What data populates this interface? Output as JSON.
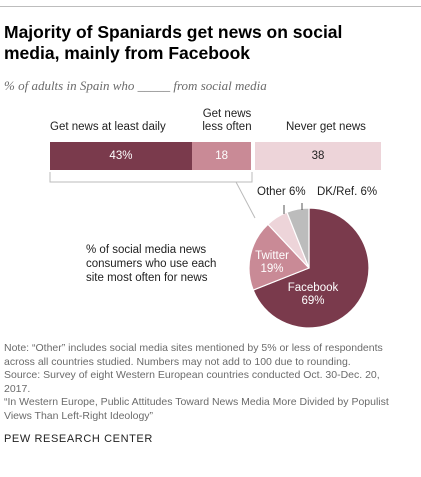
{
  "title_line1": "Majority of Spaniards get news on social",
  "title_line2": "media, mainly from Facebook",
  "subtitle": "% of adults in Spain who _____ from social media",
  "colors": {
    "daily": "#7a3a4c",
    "less_often": "#c98a96",
    "never": "#edd4d9",
    "facebook": "#7a3a4c",
    "twitter": "#c98a96",
    "other": "#edd4d9",
    "dk": "#bcbcbc",
    "callout": "#bbbbbb"
  },
  "chart_data": [
    {
      "type": "bar",
      "orientation": "horizontal-stacked",
      "categories": [
        "Get news at least daily",
        "Get news less often",
        "Never get news"
      ],
      "category_labels": {
        "daily": "Get news at least daily",
        "less_often_line1": "Get news",
        "less_often_line2": "less often",
        "never": "Never get news"
      },
      "values": [
        43,
        18,
        38
      ],
      "value_labels": [
        "43%",
        "18",
        "38"
      ],
      "total": 100
    },
    {
      "type": "pie",
      "title_line1": "% of social media news",
      "title_line2": "consumers who use each",
      "title_line3": "site most often for news",
      "slices": [
        {
          "name": "Facebook",
          "value": 69,
          "label": "69%"
        },
        {
          "name": "Twitter",
          "value": 19,
          "label": "19%"
        },
        {
          "name": "Other",
          "value": 6,
          "label": "6%"
        },
        {
          "name": "DK/Ref.",
          "value": 6,
          "label": "6%"
        }
      ],
      "slice_labels": {
        "facebook_name": "Facebook",
        "facebook_value": "69%",
        "twitter_name": "Twitter",
        "twitter_value": "19%",
        "other": "Other 6%",
        "dk": "DK/Ref. 6%"
      }
    }
  ],
  "notes": {
    "line1": "Note: “Other” includes social media sites mentioned by 5% or less of respondents",
    "line2": "across all countries studied. Numbers may not add to 100 due to rounding.",
    "line3": "Source: Survey of eight Western European countries conducted Oct. 30-Dec. 20,",
    "line4": "2017.",
    "line5": "“In Western Europe, Public Attitudes Toward News Media More Divided by Populist",
    "line6": "Views Than Left-Right Ideology”"
  },
  "org": "PEW RESEARCH CENTER"
}
